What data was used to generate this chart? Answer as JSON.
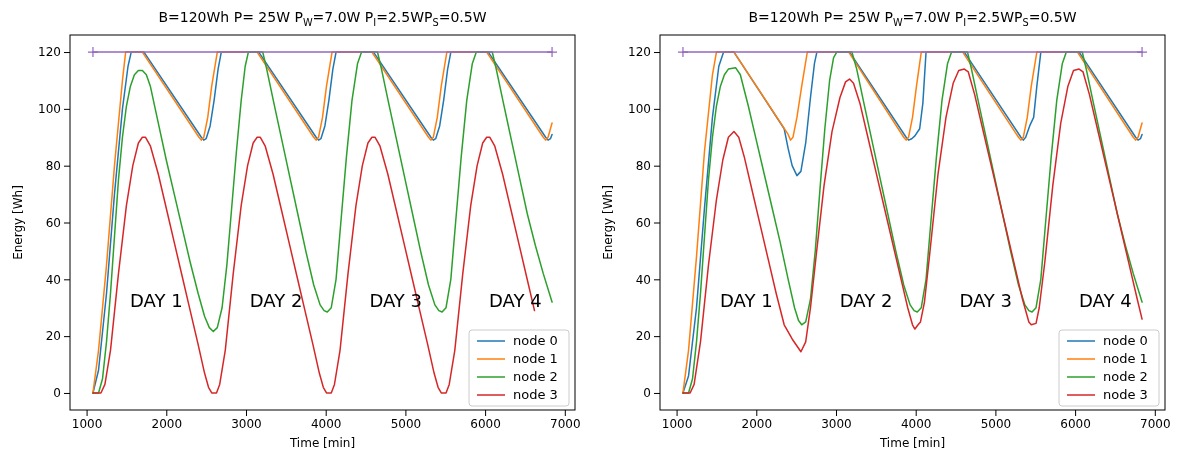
{
  "chart_data": [
    {
      "type": "line",
      "title": "B=120Wh P= 25W P$_{W}$=7.0W P$_{I}$=2.5WP$_{S}$=0.5W",
      "xlabel": "Time [min]",
      "ylabel": "Energy [Wh]",
      "xlim": [
        792,
        7128
      ],
      "ylim": [
        -6,
        126
      ],
      "xticks": [
        1000,
        2000,
        3000,
        4000,
        5000,
        6000,
        7000
      ],
      "yticks": [
        0,
        20,
        40,
        60,
        80,
        100,
        120
      ],
      "legend": "bottom right",
      "annotations": [
        "DAY 1",
        "DAY 2",
        "DAY 3",
        "DAY 4"
      ],
      "series": [
        {
          "name": "node 0",
          "color": "#1f77b4",
          "x": [
            1080,
            1150,
            1250,
            1350,
            1450,
            1520,
            1560,
            1720,
            2440,
            2470,
            2500,
            2550,
            2600,
            2650,
            2690,
            3160,
            3880,
            3910,
            3940,
            3990,
            4040,
            4090,
            4130,
            4600,
            5320,
            5350,
            5380,
            5430,
            5480,
            5530,
            5570,
            6040,
            6760,
            6790,
            6820,
            6840
          ],
          "values": [
            0,
            8,
            35,
            70,
            100,
            115,
            120,
            120,
            90,
            89,
            89.5,
            94,
            103,
            114,
            120,
            120,
            90,
            89,
            89.5,
            94,
            103,
            114,
            120,
            120,
            90,
            89,
            89.5,
            94,
            103,
            114,
            120,
            120,
            90,
            89,
            89.5,
            91
          ]
        },
        {
          "name": "node 1",
          "color": "#ff7f0e",
          "x": [
            1080,
            1150,
            1250,
            1350,
            1450,
            1490,
            1700,
            2410,
            2440,
            2470,
            2520,
            2570,
            2640,
            3140,
            3850,
            3880,
            3910,
            3960,
            4010,
            4080,
            4580,
            5290,
            5320,
            5350,
            5400,
            5450,
            5520,
            6020,
            6730,
            6760,
            6790,
            6840
          ],
          "values": [
            0,
            15,
            45,
            80,
            110,
            120,
            120,
            90,
            89,
            90,
            97,
            108,
            120,
            120,
            90,
            89,
            90,
            97,
            108,
            120,
            120,
            90,
            89,
            90,
            97,
            108,
            120,
            120,
            90,
            89,
            90,
            95
          ]
        },
        {
          "name": "node 2",
          "color": "#2ca02c",
          "x": [
            1080,
            1150,
            1200,
            1250,
            1300,
            1350,
            1400,
            1450,
            1500,
            1550,
            1600,
            1650,
            1700,
            1750,
            1800,
            1900,
            2000,
            2100,
            2200,
            2300,
            2400,
            2480,
            2540,
            2590,
            2640,
            2700,
            2760,
            2820,
            2880,
            2940,
            2990,
            3030,
            3210,
            3260,
            3350,
            3450,
            3550,
            3650,
            3750,
            3850,
            3930,
            3980,
            4020,
            4070,
            4130,
            4190,
            4260,
            4330,
            4400,
            4450,
            4650,
            4700,
            4790,
            4890,
            4990,
            5090,
            5190,
            5290,
            5370,
            5420,
            5460,
            5510,
            5570,
            5630,
            5700,
            5770,
            5840,
            5890,
            6090,
            6140,
            6230,
            6330,
            6430,
            6530,
            6630,
            6730,
            6840
          ],
          "values": [
            0,
            0,
            5,
            18,
            35,
            55,
            75,
            90,
            101,
            108,
            112,
            113.5,
            113.5,
            112,
            108,
            95,
            82,
            70,
            58,
            46,
            35,
            27,
            23,
            21.6,
            23,
            30,
            45,
            65,
            85,
            103,
            115,
            120,
            120,
            114,
            102,
            89,
            76,
            63,
            50,
            38,
            31,
            29,
            28.5,
            30,
            40,
            60,
            83,
            103,
            116,
            120,
            120,
            114,
            102,
            89,
            76,
            63,
            50,
            38,
            31,
            29,
            28.5,
            30,
            40,
            60,
            83,
            103,
            116,
            120,
            120,
            114,
            102,
            89,
            76,
            63,
            52,
            42,
            32
          ]
        },
        {
          "name": "node 3",
          "color": "#d62728",
          "x": [
            1080,
            1180,
            1230,
            1300,
            1400,
            1500,
            1580,
            1650,
            1700,
            1740,
            1800,
            1900,
            2000,
            2100,
            2200,
            2300,
            2400,
            2480,
            2530,
            2570,
            2630,
            2670,
            2740,
            2840,
            2940,
            3020,
            3090,
            3140,
            3180,
            3240,
            3340,
            3440,
            3540,
            3640,
            3740,
            3840,
            3920,
            3970,
            4010,
            4070,
            4110,
            4180,
            4280,
            4380,
            4460,
            4530,
            4580,
            4620,
            4680,
            4780,
            4880,
            4980,
            5080,
            5180,
            5280,
            5360,
            5410,
            5450,
            5510,
            5550,
            5620,
            5720,
            5820,
            5900,
            5970,
            6020,
            6060,
            6120,
            6220,
            6320,
            6420,
            6520,
            6620
          ],
          "values": [
            0,
            0,
            3,
            15,
            42,
            66,
            80,
            88,
            90,
            90,
            87,
            77,
            65,
            53,
            41,
            29,
            17,
            7,
            2,
            0,
            0,
            3,
            15,
            42,
            66,
            80,
            88,
            90,
            90,
            87,
            77,
            65,
            53,
            41,
            29,
            17,
            7,
            2,
            0,
            0,
            3,
            15,
            42,
            66,
            80,
            88,
            90,
            90,
            87,
            77,
            65,
            53,
            41,
            29,
            17,
            7,
            2,
            0,
            0,
            3,
            15,
            42,
            66,
            80,
            88,
            90,
            90,
            87,
            77,
            65,
            53,
            41,
            29
          ]
        },
        {
          "color": "#9467bd",
          "marker": "cross",
          "x": [
            1080,
            6840
          ],
          "values": [
            120,
            120
          ]
        }
      ]
    },
    {
      "type": "line",
      "title": "B=120Wh P= 25W P$_{W}$=7.0W P$_{I}$=2.5WP$_{S}$=0.5W",
      "xlabel": "Time [min]",
      "ylabel": "Energy [Wh]",
      "xlim": [
        792,
        7128
      ],
      "ylim": [
        -6,
        126
      ],
      "xticks": [
        1000,
        2000,
        3000,
        4000,
        5000,
        6000,
        7000
      ],
      "yticks": [
        0,
        20,
        40,
        60,
        80,
        100,
        120
      ],
      "legend": "bottom right",
      "annotations": [
        "DAY 1",
        "DAY 2",
        "DAY 3",
        "DAY 4"
      ],
      "series": [
        {
          "name": "node 0",
          "color": "#1f77b4",
          "x": [
            1080,
            1150,
            1250,
            1350,
            1450,
            1530,
            1590,
            1720,
            2350,
            2400,
            2450,
            2510,
            2560,
            2620,
            2680,
            2730,
            2760,
            3170,
            3880,
            3910,
            3950,
            3990,
            4050,
            4090,
            4130,
            4610,
            5320,
            5350,
            5380,
            5430,
            5480,
            5520,
            5570,
            6050,
            6760,
            6790,
            6820,
            6840
          ],
          "values": [
            0,
            6,
            30,
            65,
            97,
            115,
            120,
            120,
            93,
            86,
            80,
            76.5,
            78,
            88,
            104,
            116,
            120,
            120,
            90,
            89,
            89.5,
            90.5,
            93,
            102,
            120,
            120,
            90,
            89,
            90,
            94,
            97,
            108,
            120,
            120,
            90,
            89,
            89.5,
            91
          ]
        },
        {
          "name": "node 1",
          "color": "#ff7f0e",
          "x": [
            1080,
            1150,
            1250,
            1350,
            1450,
            1500,
            1720,
            2400,
            2430,
            2460,
            2510,
            2570,
            2640,
            3160,
            3850,
            3880,
            3910,
            3960,
            4010,
            4070,
            4590,
            5290,
            5320,
            5350,
            5400,
            5450,
            5520,
            6030,
            6730,
            6760,
            6790,
            6840
          ],
          "values": [
            0,
            15,
            48,
            85,
            112,
            120,
            120,
            91,
            89,
            90,
            97,
            108,
            120,
            120,
            90,
            89,
            90,
            97,
            108,
            120,
            120,
            90,
            89,
            90,
            97,
            108,
            120,
            120,
            90,
            89,
            90,
            95
          ]
        },
        {
          "name": "node 2",
          "color": "#2ca02c",
          "x": [
            1080,
            1150,
            1200,
            1250,
            1300,
            1350,
            1400,
            1450,
            1500,
            1550,
            1600,
            1650,
            1740,
            1800,
            1900,
            2000,
            2100,
            2200,
            2300,
            2400,
            2480,
            2530,
            2570,
            2620,
            2680,
            2740,
            2800,
            2860,
            2920,
            2970,
            3010,
            3200,
            3260,
            3350,
            3450,
            3550,
            3650,
            3750,
            3850,
            3930,
            3980,
            4020,
            4070,
            4130,
            4190,
            4260,
            4330,
            4400,
            4450,
            4650,
            4700,
            4790,
            4890,
            4990,
            5090,
            5190,
            5290,
            5370,
            5420,
            5460,
            5510,
            5570,
            5630,
            5700,
            5770,
            5840,
            5890,
            6090,
            6140,
            6230,
            6330,
            6430,
            6530,
            6630,
            6730,
            6840
          ],
          "values": [
            0,
            0,
            5,
            18,
            35,
            55,
            75,
            90,
            101,
            108,
            112,
            114,
            114.5,
            112,
            101,
            89,
            77,
            65,
            53,
            40,
            30,
            25.5,
            24,
            25,
            33,
            50,
            72,
            93,
            110,
            118,
            120,
            120,
            114,
            102,
            89,
            76,
            63,
            50,
            38,
            31,
            29,
            28.5,
            30,
            40,
            60,
            83,
            103,
            116,
            120,
            120,
            114,
            102,
            89,
            76,
            63,
            50,
            38,
            31,
            29,
            28.5,
            30,
            40,
            60,
            83,
            103,
            116,
            120,
            120,
            114,
            102,
            89,
            76,
            63,
            52,
            42,
            32
          ]
        },
        {
          "name": "node 3",
          "color": "#d62728",
          "x": [
            1080,
            1170,
            1220,
            1300,
            1400,
            1500,
            1580,
            1650,
            1720,
            1780,
            1850,
            1950,
            2050,
            2150,
            2250,
            2350,
            2450,
            2560,
            2620,
            2680,
            2750,
            2850,
            2950,
            3050,
            3120,
            3170,
            3220,
            3300,
            3400,
            3500,
            3600,
            3700,
            3800,
            3900,
            3960,
            3990,
            4030,
            4060,
            4110,
            4180,
            4280,
            4380,
            4470,
            4540,
            4610,
            4660,
            4740,
            4840,
            4940,
            5040,
            5140,
            5240,
            5340,
            5420,
            5450,
            5510,
            5550,
            5620,
            5720,
            5820,
            5910,
            5980,
            6050,
            6100,
            6180,
            6280,
            6380,
            6480,
            6580,
            6680,
            6780,
            6840
          ],
          "values": [
            0,
            0,
            3,
            18,
            45,
            68,
            82,
            90,
            92,
            90,
            83,
            71,
            59,
            47,
            35,
            24,
            19,
            14.5,
            18,
            30,
            48,
            73,
            92,
            104,
            109.5,
            110.5,
            109,
            102,
            90,
            78,
            66,
            54,
            42,
            30,
            24,
            22.5,
            24,
            25,
            32,
            50,
            77,
            97,
            109,
            113.5,
            114,
            113,
            105,
            93,
            81,
            69,
            57,
            45,
            33,
            25,
            24,
            24.5,
            30,
            46,
            73,
            95,
            108,
            113.5,
            114,
            113,
            105,
            93,
            81,
            69,
            57,
            45,
            33,
            26
          ]
        },
        {
          "color": "#9467bd",
          "marker": "cross",
          "x": [
            1080,
            6840
          ],
          "values": [
            120,
            120
          ]
        }
      ]
    }
  ]
}
